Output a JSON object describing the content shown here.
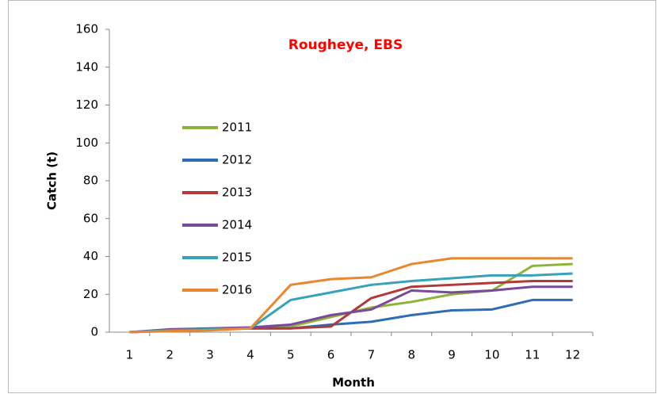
{
  "chart_data": {
    "type": "line",
    "title": "Rougheye, EBS",
    "x_label": "Month",
    "y_label": "Catch (t)",
    "categories": [
      1,
      2,
      3,
      4,
      5,
      6,
      7,
      8,
      9,
      10,
      11,
      12
    ],
    "ylim": [
      0,
      160
    ],
    "yticks": [
      0,
      20,
      40,
      60,
      80,
      100,
      120,
      140,
      160
    ],
    "grid": false,
    "legend": "left",
    "series": [
      {
        "name": "2011",
        "color": "#8db33a",
        "values": [
          0,
          1,
          1.5,
          2,
          3,
          8,
          13,
          16,
          20,
          22,
          35,
          36
        ]
      },
      {
        "name": "2012",
        "color": "#2e6db4",
        "values": [
          0,
          1,
          1.5,
          2,
          2,
          4,
          5.5,
          9,
          11.5,
          12,
          17,
          17
        ]
      },
      {
        "name": "2013",
        "color": "#b03a3a",
        "values": [
          0,
          1,
          1.5,
          2,
          2,
          3,
          18,
          24,
          25,
          26,
          27,
          27
        ]
      },
      {
        "name": "2014",
        "color": "#7a4a9a",
        "values": [
          0,
          1.5,
          2,
          2.5,
          4,
          9,
          12,
          22,
          21,
          22,
          24,
          24
        ]
      },
      {
        "name": "2015",
        "color": "#36a3b8",
        "values": [
          0,
          1,
          1.5,
          2,
          17,
          21,
          25,
          27,
          28.5,
          30,
          30,
          31
        ]
      },
      {
        "name": "2016",
        "color": "#e8872f",
        "values": [
          0,
          0.5,
          1,
          2,
          25,
          28,
          29,
          36,
          39,
          39,
          39,
          39
        ]
      }
    ]
  }
}
